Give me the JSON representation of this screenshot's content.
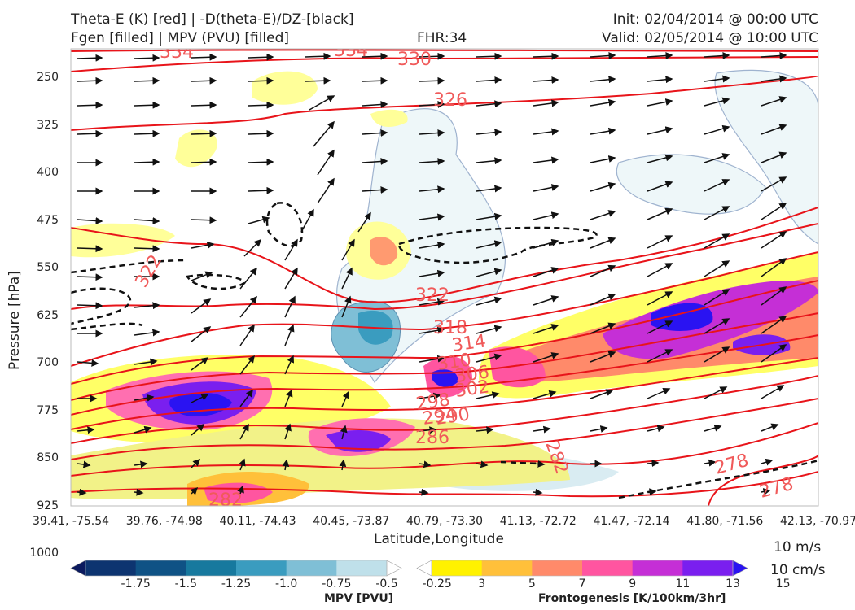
{
  "header": {
    "title_line1": "Theta-E (K) [red] | -D(theta-E)/DZ-[black]",
    "title_line2": "Fgen [filled] | MPV (PVU) [filled]",
    "fhr": "FHR:34",
    "init": "Init: 02/04/2014 @ 00:00 UTC",
    "valid": "Valid: 02/05/2014 @ 10:00 UTC"
  },
  "chart_data": {
    "type": "cross-section",
    "ylabel": "Pressure [hPa]",
    "xlabel": "Latitude,Longitude",
    "y_ticks": [
      "250",
      "325",
      "400",
      "475",
      "550",
      "625",
      "700",
      "775",
      "850",
      "925",
      "1000"
    ],
    "ylim": [
      1000,
      175
    ],
    "x_ticks": [
      "39.41, -75.54",
      "39.76, -74.98",
      "40.11, -74.43",
      "40.45, -73.87",
      "40.79, -73.30",
      "41.13, -72.72",
      "41.47, -72.14",
      "41.80, -71.56",
      "42.13, -70.97"
    ],
    "theta_e_labels": [
      "334",
      "334",
      "330",
      "326",
      "322",
      "322",
      "318",
      "314",
      "310",
      "306",
      "302",
      "298",
      "294",
      "290",
      "286",
      "282",
      "282",
      "278",
      "278"
    ],
    "vector_key": {
      "horizontal": "10 m/s",
      "vertical": "10 cm/s"
    },
    "mpv_colorbar": {
      "title": "MPV [PVU]",
      "levels": [
        "-1.75",
        "-1.5",
        "-1.25",
        "-1.0",
        "-0.75",
        "-0.5",
        "-0.25"
      ],
      "colors": [
        "#0b1a5e",
        "#0d3470",
        "#0f5285",
        "#17799e",
        "#3a9cbf",
        "#7fbfd6",
        "#bfe0ea",
        "#ffffff"
      ]
    },
    "fgen_colorbar": {
      "title": "Frontogenesis [K/100km/3hr]",
      "levels": [
        "3",
        "5",
        "7",
        "9",
        "11",
        "13",
        "15"
      ],
      "colors": [
        "#ffffff",
        "#fff200",
        "#ffc03a",
        "#ff8a6a",
        "#ff55a0",
        "#c52fd6",
        "#7a1fef",
        "#2a13f2"
      ]
    }
  }
}
